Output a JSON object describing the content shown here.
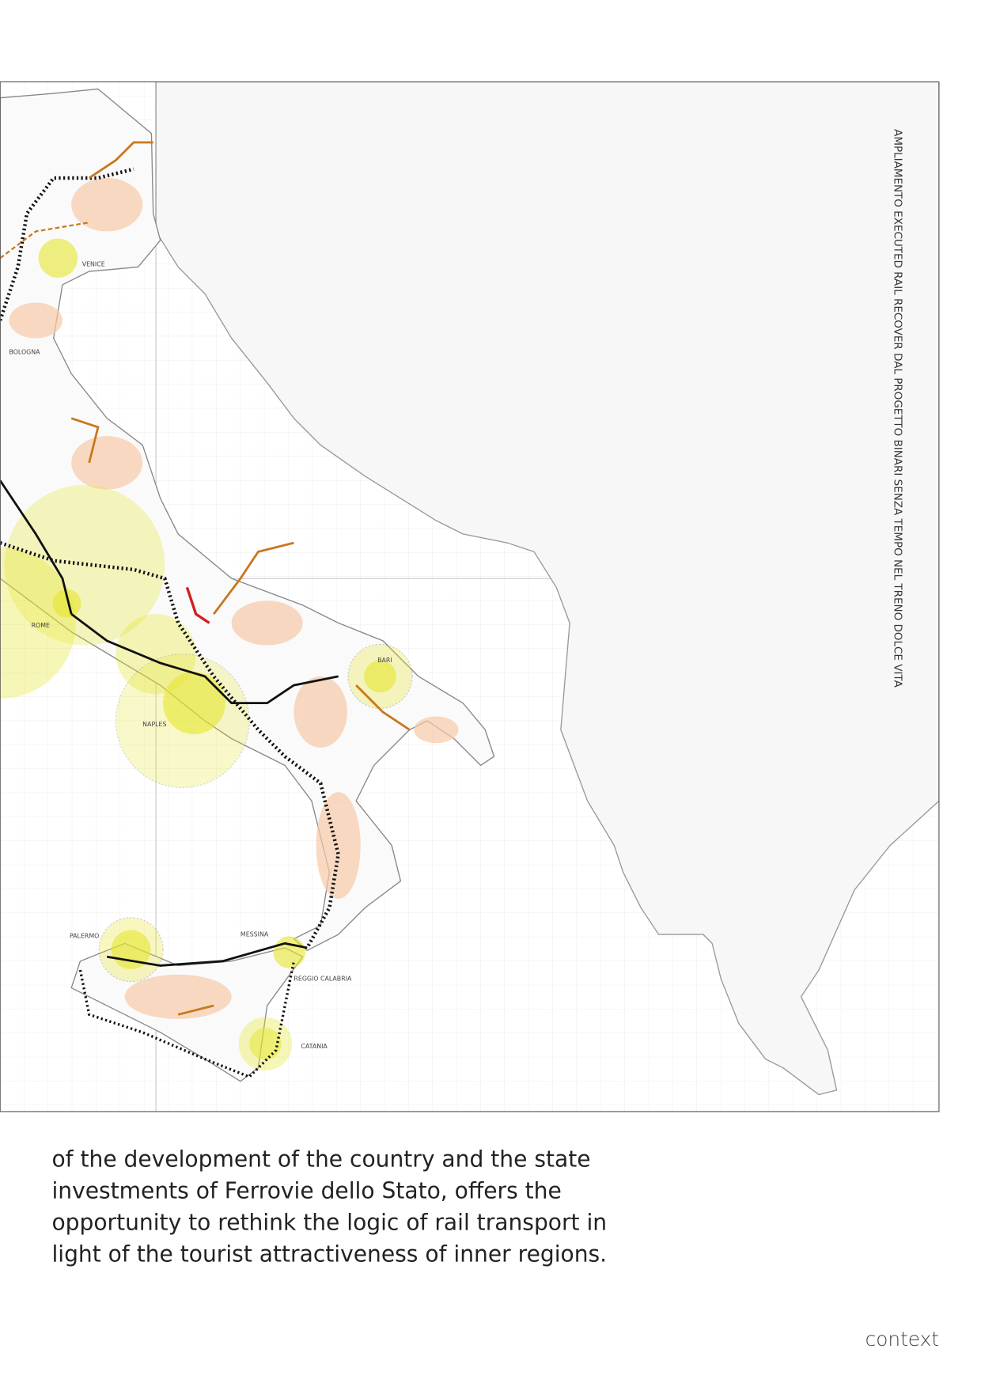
{
  "map": {
    "title": "AMPLIAMENTO EXECUTED RAIL RECOVER DAL PROGETTO BINARI SENZA TEMPO NEL TRENO DOLCE VITA",
    "cities": [
      "VENICE",
      "BOLOGNA",
      "ROME",
      "NAPLES",
      "BARI",
      "PALERMO",
      "MESSINA",
      "REGGIO CALABRIA",
      "CATANIA"
    ]
  },
  "text": {
    "paragraph": [
      "of the development of the country and the state",
      "investments of Ferrovie dello Stato, offers the",
      "opportunity to rethink the logic of rail transport in",
      "light of the tourist attractiveness of inner regions."
    ]
  },
  "footer": "context"
}
